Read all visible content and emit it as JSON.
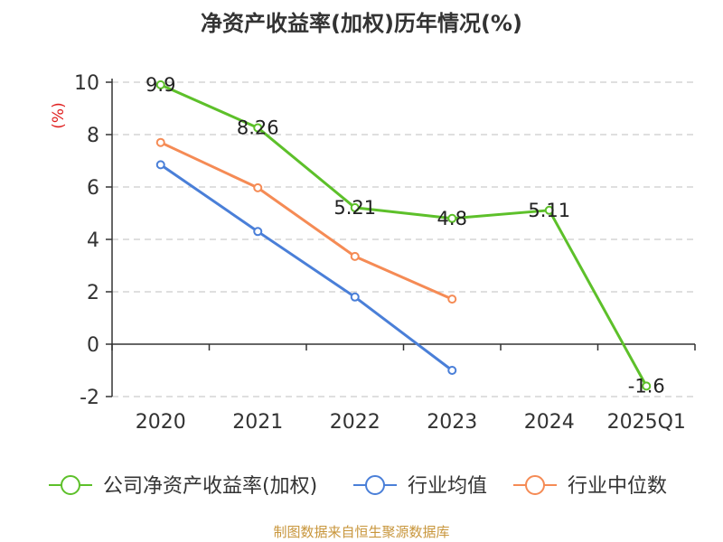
{
  "title": "净资产收益率(加权)历年情况(%)",
  "source": "制图数据来自恒生聚源数据库",
  "chart_data": {
    "type": "line",
    "title": "净资产收益率(加权)历年情况(%)",
    "ylabel": "(%)",
    "xlabel": "",
    "categories": [
      "2020",
      "2021",
      "2022",
      "2023",
      "2024",
      "2025Q1"
    ],
    "ylim": [
      -2,
      10
    ],
    "yticks": [
      "-2",
      "0",
      "2",
      "4",
      "6",
      "8",
      "10"
    ],
    "grid": true,
    "legend_position": "bottom",
    "series": [
      {
        "name": "公司净资产收益率(加权)",
        "color": "#5dc02a",
        "values": [
          9.9,
          8.26,
          5.21,
          4.8,
          5.11,
          -1.6
        ],
        "labels": [
          "9.9",
          "8.26",
          "5.21",
          "4.8",
          "5.11",
          "-1.6"
        ]
      },
      {
        "name": "行业均值",
        "color": "#4a7fd8",
        "values": [
          6.85,
          4.3,
          1.8,
          -1.0,
          null,
          null
        ]
      },
      {
        "name": "行业中位数",
        "color": "#f58b55",
        "values": [
          7.7,
          5.97,
          3.35,
          1.72,
          null,
          null
        ]
      }
    ]
  }
}
